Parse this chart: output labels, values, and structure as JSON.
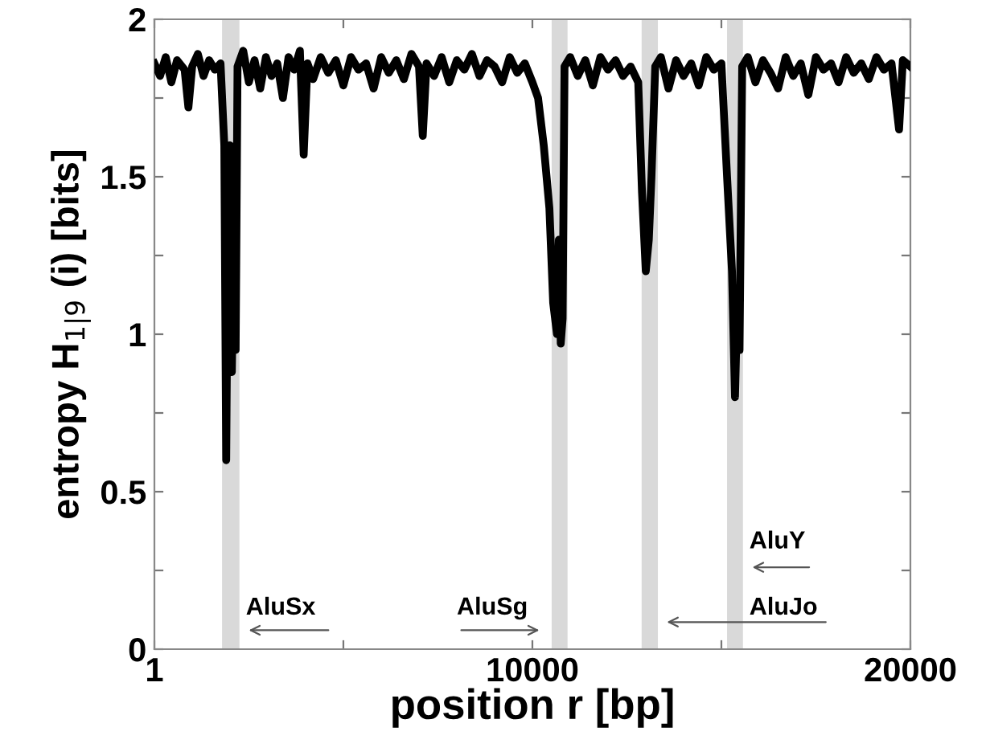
{
  "chart_data": {
    "type": "line",
    "xlabel": "position r [bp]",
    "ylabel": "entropy H$_{1|9}$ (i) [bits]",
    "xlim": [
      1,
      20000
    ],
    "ylim": [
      0,
      2
    ],
    "xticks": [
      1,
      {
        "value": 5000,
        "label": null
      },
      10000,
      {
        "value": 15000,
        "label": null
      },
      20000
    ],
    "yticks": [
      0,
      {
        "value": 0.25,
        "label": null
      },
      0.5,
      {
        "value": 0.75,
        "label": null
      },
      1,
      {
        "value": 1.25,
        "label": null
      },
      1.5,
      {
        "value": 1.75,
        "label": null
      },
      2
    ],
    "grid": false,
    "marker": "none",
    "line_style": "solid",
    "bands": [
      {
        "axis": "x",
        "from": 1790,
        "to": 2250,
        "color": "#d9d9d9"
      },
      {
        "axis": "x",
        "from": 10510,
        "to": 10930,
        "color": "#d9d9d9"
      },
      {
        "axis": "x",
        "from": 12890,
        "to": 13320,
        "color": "#d9d9d9"
      },
      {
        "axis": "x",
        "from": 15150,
        "to": 15570,
        "color": "#d9d9d9"
      }
    ],
    "annotations": [
      "AluSx",
      "AluSg",
      "AluJo",
      "AluY"
    ],
    "series": [
      {
        "color": "#000000",
        "x": [
          1,
          150,
          300,
          450,
          600,
          800,
          900,
          1000,
          1150,
          1300,
          1450,
          1600,
          1750,
          1850,
          1900,
          1950,
          2000,
          2050,
          2100,
          2150,
          2200,
          2350,
          2500,
          2650,
          2800,
          2950,
          3100,
          3250,
          3400,
          3550,
          3700,
          3850,
          3950,
          4050,
          4200,
          4400,
          4600,
          4800,
          5000,
          5200,
          5400,
          5600,
          5800,
          6000,
          6200,
          6400,
          6600,
          6800,
          7000,
          7100,
          7200,
          7400,
          7600,
          7800,
          8000,
          8200,
          8400,
          8600,
          8800,
          9000,
          9200,
          9400,
          9600,
          9800,
          10000,
          10150,
          10300,
          10450,
          10550,
          10650,
          10700,
          10750,
          10800,
          10850,
          11000,
          11200,
          11400,
          11600,
          11800,
          12000,
          12200,
          12400,
          12600,
          12800,
          12900,
          13000,
          13080,
          13150,
          13250,
          13400,
          13600,
          13800,
          14000,
          14200,
          14400,
          14600,
          14800,
          15000,
          15150,
          15280,
          15360,
          15420,
          15480,
          15550,
          15700,
          15900,
          16100,
          16300,
          16500,
          16700,
          16900,
          17100,
          17300,
          17500,
          17700,
          17900,
          18100,
          18300,
          18500,
          18700,
          18900,
          19100,
          19300,
          19500,
          19700,
          19800,
          20000
        ],
        "values": [
          1.86,
          1.82,
          1.88,
          1.8,
          1.87,
          1.84,
          1.72,
          1.85,
          1.89,
          1.82,
          1.87,
          1.84,
          1.86,
          1.6,
          0.6,
          1.4,
          1.6,
          0.88,
          1.3,
          0.95,
          1.85,
          1.9,
          1.8,
          1.87,
          1.78,
          1.88,
          1.82,
          1.86,
          1.75,
          1.88,
          1.84,
          1.9,
          1.57,
          1.86,
          1.81,
          1.88,
          1.83,
          1.87,
          1.79,
          1.88,
          1.84,
          1.86,
          1.78,
          1.88,
          1.83,
          1.87,
          1.81,
          1.89,
          1.85,
          1.63,
          1.86,
          1.82,
          1.88,
          1.8,
          1.87,
          1.84,
          1.89,
          1.82,
          1.87,
          1.85,
          1.8,
          1.88,
          1.83,
          1.86,
          1.8,
          1.75,
          1.6,
          1.4,
          1.1,
          1.0,
          1.3,
          0.97,
          1.05,
          1.85,
          1.88,
          1.82,
          1.87,
          1.79,
          1.88,
          1.84,
          1.87,
          1.82,
          1.85,
          1.8,
          1.45,
          1.2,
          1.3,
          1.5,
          1.85,
          1.88,
          1.78,
          1.87,
          1.82,
          1.86,
          1.79,
          1.88,
          1.84,
          1.86,
          1.5,
          1.2,
          0.8,
          1.1,
          0.95,
          1.85,
          1.88,
          1.8,
          1.87,
          1.83,
          1.78,
          1.88,
          1.82,
          1.86,
          1.76,
          1.88,
          1.84,
          1.86,
          1.8,
          1.88,
          1.83,
          1.86,
          1.81,
          1.88,
          1.84,
          1.86,
          1.65,
          1.87,
          1.85
        ]
      }
    ]
  }
}
